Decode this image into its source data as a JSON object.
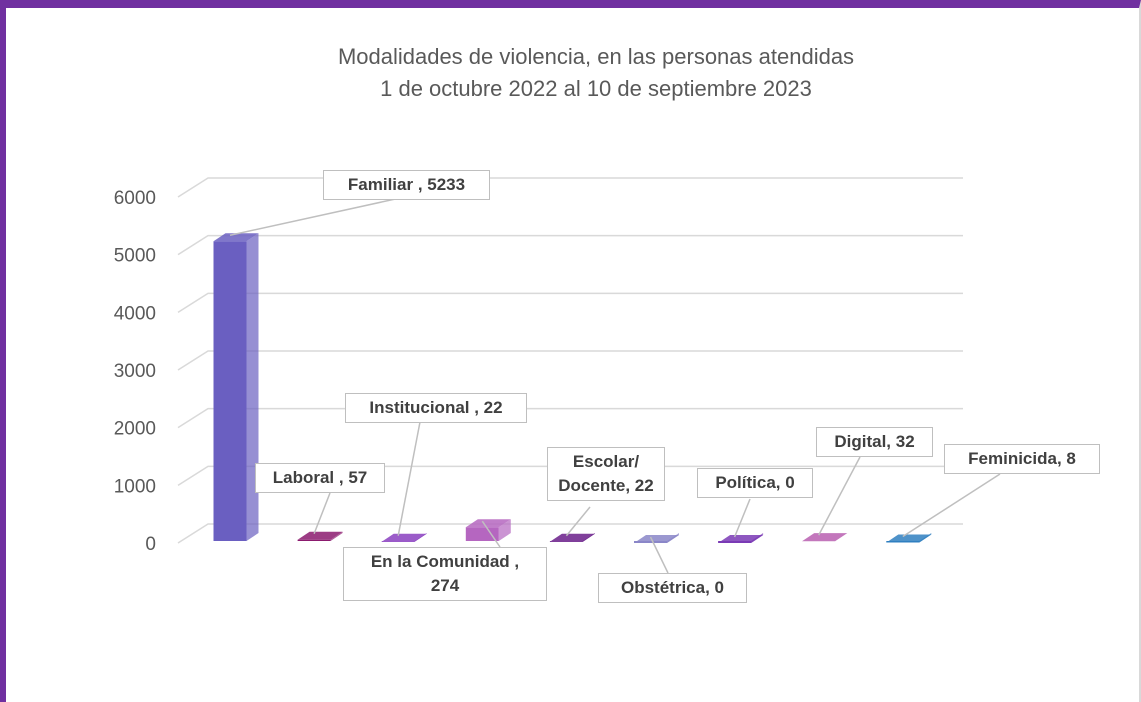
{
  "chart_data": {
    "type": "bar3d",
    "title": "Modalidades de violencia, en las personas atendidas",
    "subtitle": "1 de octubre 2022 al 10 de septiembre 2023",
    "values": [
      5233,
      57,
      22,
      274,
      22,
      0,
      0,
      32,
      8
    ],
    "value_labels": [
      "Familiar , 5233",
      "Laboral , 57",
      "Institucional , 22",
      "En la Comunidad ,\n274",
      "Escolar/\nDocente, 22",
      "Obstétrica, 0",
      "Política, 0",
      "Digital, 32",
      "Feminicida, 8"
    ],
    "colors": [
      "#6a5fc1",
      "#8b1a6e",
      "#8a3fc0",
      "#b566c0",
      "#6a1f8a",
      "#8a86c8",
      "#7a3ab5",
      "#b85fb0",
      "#2f7fc0"
    ],
    "ylim": [
      0,
      6000
    ],
    "yticks": [
      0,
      1000,
      2000,
      3000,
      4000,
      5000,
      6000
    ],
    "grid": true
  }
}
